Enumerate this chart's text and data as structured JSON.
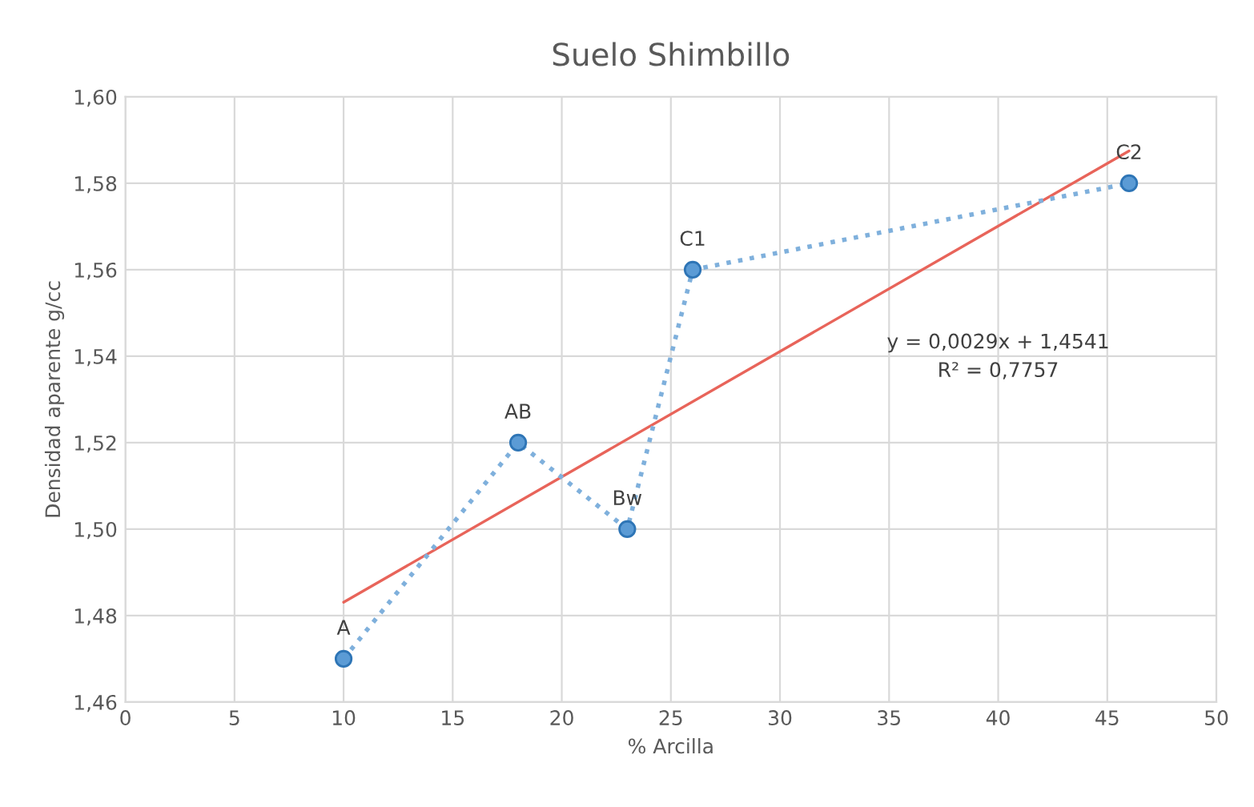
{
  "chart_data": {
    "type": "line",
    "title": "Suelo Shimbillo",
    "xlabel": "% Arcilla",
    "ylabel": "Densidad aparente g/cc",
    "series": [
      {
        "color": "#7fb0dc",
        "x": [
          10,
          18,
          23,
          26,
          46
        ],
        "values": [
          1.47,
          1.52,
          1.5,
          1.56,
          1.58
        ],
        "marker": "circle",
        "line_style": "dotted"
      },
      {
        "color": "#e8645a",
        "x": [
          10,
          46
        ],
        "values": [
          1.4831,
          1.5875
        ],
        "marker": "none",
        "line_style": "solid"
      }
    ],
    "annotations": [
      {
        "text": "A",
        "x": 10,
        "y": 1.47
      },
      {
        "text": "AB",
        "x": 18,
        "y": 1.52
      },
      {
        "text": "Bw",
        "x": 23,
        "y": 1.5
      },
      {
        "text": "C1",
        "x": 26,
        "y": 1.56
      },
      {
        "text": "C2",
        "x": 46,
        "y": 1.58
      },
      "y = 0,0029x + 1,4541\nR² = 0,7757"
    ],
    "xlim": [
      0,
      50
    ],
    "xticks": [
      0,
      5,
      10,
      15,
      20,
      25,
      30,
      35,
      40,
      45,
      50
    ],
    "ylim": [
      1.46,
      1.6
    ],
    "yticks": [
      {
        "value": 1.46,
        "label": "1,46"
      },
      {
        "value": 1.48,
        "label": "1,48"
      },
      {
        "value": 1.5,
        "label": "1,50"
      },
      {
        "value": 1.52,
        "label": "1,52"
      },
      {
        "value": 1.54,
        "label": "1,54"
      },
      {
        "value": 1.56,
        "label": "1,56"
      },
      {
        "value": 1.58,
        "label": "1,58"
      },
      {
        "value": 1.6,
        "label": "1,60"
      }
    ],
    "grid": true
  }
}
